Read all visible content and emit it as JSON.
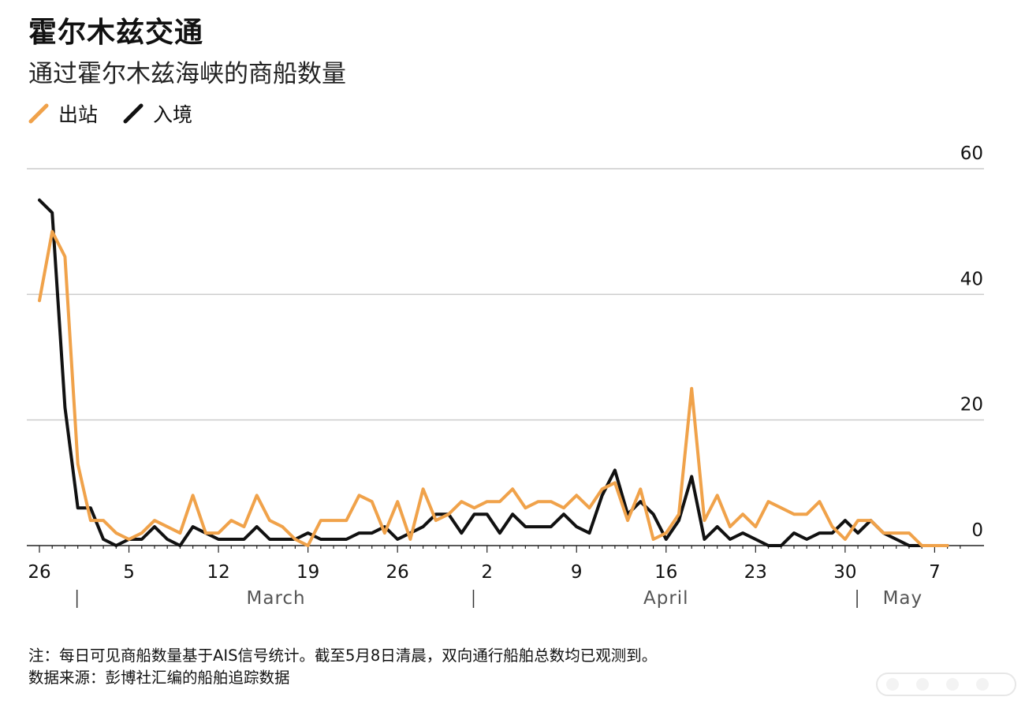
{
  "chart_data": {
    "type": "line",
    "title": "霍尔木兹交通",
    "subtitle": "通过霍尔木兹海峡的商船数量",
    "xlabel": "",
    "ylabel": "",
    "ylim": [
      0,
      60
    ],
    "yticks": [
      "0",
      "20",
      "40",
      "60"
    ],
    "grid": true,
    "legend_position": "top-left",
    "x_start": "Feb 26",
    "x_ticks": [
      {
        "day": 0,
        "label": "26"
      },
      {
        "day": 7,
        "label": "5"
      },
      {
        "day": 14,
        "label": "12"
      },
      {
        "day": 21,
        "label": "19"
      },
      {
        "day": 28,
        "label": "26"
      },
      {
        "day": 35,
        "label": "2"
      },
      {
        "day": 42,
        "label": "9"
      },
      {
        "day": 49,
        "label": "16"
      },
      {
        "day": 56,
        "label": "23"
      },
      {
        "day": 63,
        "label": "30"
      },
      {
        "day": 70,
        "label": "7"
      }
    ],
    "month_labels": [
      {
        "label": "March",
        "day": 18.5
      },
      {
        "label": "April",
        "day": 49
      },
      {
        "label": "May",
        "day": 67.5
      }
    ],
    "month_dividers": [
      3,
      34,
      64
    ],
    "series": [
      {
        "name": "出站",
        "color": "#F0A24A",
        "values": [
          39,
          50,
          46,
          13,
          4,
          4,
          2,
          1,
          2,
          4,
          3,
          2,
          8,
          2,
          2,
          4,
          3,
          8,
          4,
          3,
          1,
          0,
          4,
          4,
          4,
          8,
          7,
          2,
          7,
          1,
          9,
          4,
          5,
          7,
          6,
          7,
          7,
          9,
          6,
          7,
          7,
          6,
          8,
          6,
          9,
          10,
          4,
          9,
          1,
          2,
          5,
          25,
          4,
          8,
          3,
          5,
          3,
          7,
          6,
          5,
          5,
          7,
          3,
          1,
          4,
          4,
          2,
          2,
          2,
          0,
          0,
          0
        ]
      },
      {
        "name": "入境",
        "color": "#111111",
        "values": [
          55,
          53,
          22,
          6,
          6,
          1,
          0,
          1,
          1,
          3,
          1,
          0,
          3,
          2,
          1,
          1,
          1,
          3,
          1,
          1,
          1,
          2,
          1,
          1,
          1,
          2,
          2,
          3,
          1,
          2,
          3,
          5,
          5,
          2,
          5,
          5,
          2,
          5,
          3,
          3,
          3,
          5,
          3,
          2,
          8,
          12,
          5,
          7,
          5,
          1,
          4,
          11,
          1,
          3,
          1,
          2,
          1,
          0,
          0,
          2,
          1,
          2,
          2,
          4,
          2,
          4,
          2,
          1,
          0,
          0,
          0,
          0
        ]
      }
    ]
  },
  "footnote": {
    "note": "注：每日可见商船数量基于AIS信号统计。截至5月8日清晨，双向通行船舶总数均已观测到。",
    "source": "数据来源：彭博社汇编的船舶追踪数据"
  },
  "colors": {
    "gridline": "#cccccc",
    "axis": "#222222"
  }
}
